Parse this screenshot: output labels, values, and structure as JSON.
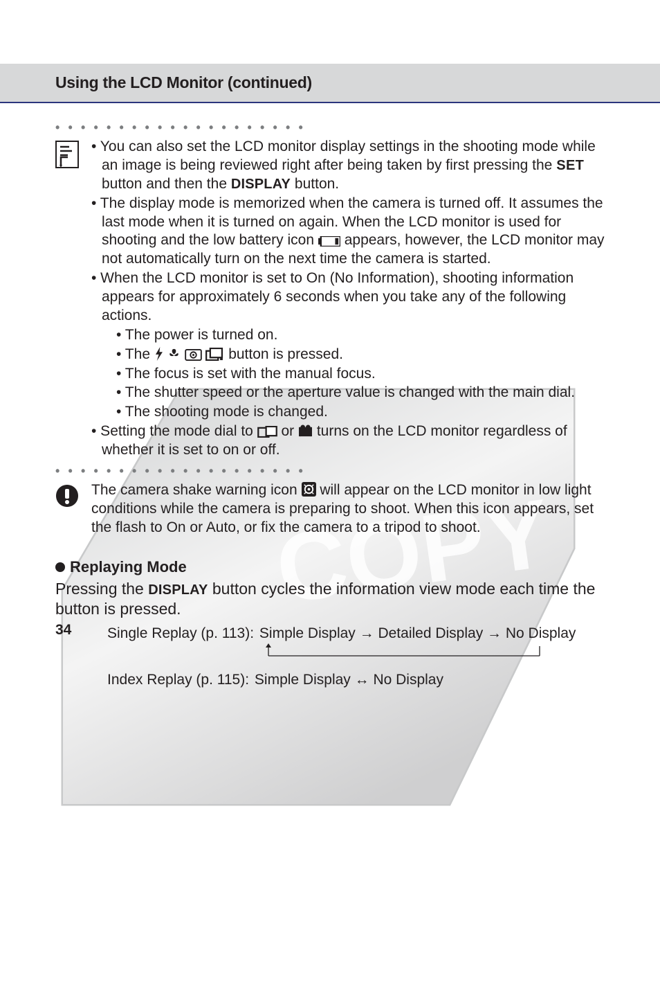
{
  "header": {
    "title": "Using the LCD Monitor (continued)"
  },
  "note1": {
    "items": [
      "You can also set the LCD monitor display settings in the shooting mode while an image is being reviewed right after being taken by first pressing the {SET} button and then the {DISPLAY} button.",
      "The display mode is memorized when the camera is turned off. It assumes the last mode when it is turned on again. When the LCD monitor is used for shooting and the low battery icon {BATT} appears, however, the LCD monitor may not automatically turn on the next time the camera is started.",
      "When the LCD monitor is set to On (No Information), shooting information appears for approximately 6 seconds when you take any of the following actions."
    ],
    "sub": [
      "The power is turned on.",
      "The {FLASH} {MACRO} {METER} {DRIVE} button is pressed.",
      "The focus is set with the manual focus.",
      "The shutter speed or the aperture value is changed with the main dial.",
      "The shooting mode is changed."
    ],
    "tail": "Setting the mode dial to {STITCH} or {MOVIE} turns on the LCD monitor regardless of whether it is set to on or off."
  },
  "note2": {
    "text": "The camera shake warning icon {SHAKE} will appear on the LCD monitor in low light conditions while the camera is preparing to shoot. When this icon appears, set the flash to On or Auto, or fix the camera to a tripod to shoot."
  },
  "replay": {
    "heading": "Replaying Mode",
    "intro": "Pressing the {DISPLAY} button cycles the information view mode each time the button is pressed.",
    "single_label": "Single Replay (p. 113):",
    "single_cycle": "Simple Display → Detailed Display → No Display",
    "index_label": "Index Replay (p. 115):",
    "index_cycle": "Simple Display ↔ No Display"
  },
  "page": "34",
  "labels": {
    "set": "SET",
    "display": "DISPLAY"
  },
  "colors": {
    "header_bg": "#d7d8d9",
    "header_underline": "#2b357d",
    "text": "#231f20",
    "dots": "#7c7e80",
    "watermark": "#c9cacb"
  }
}
